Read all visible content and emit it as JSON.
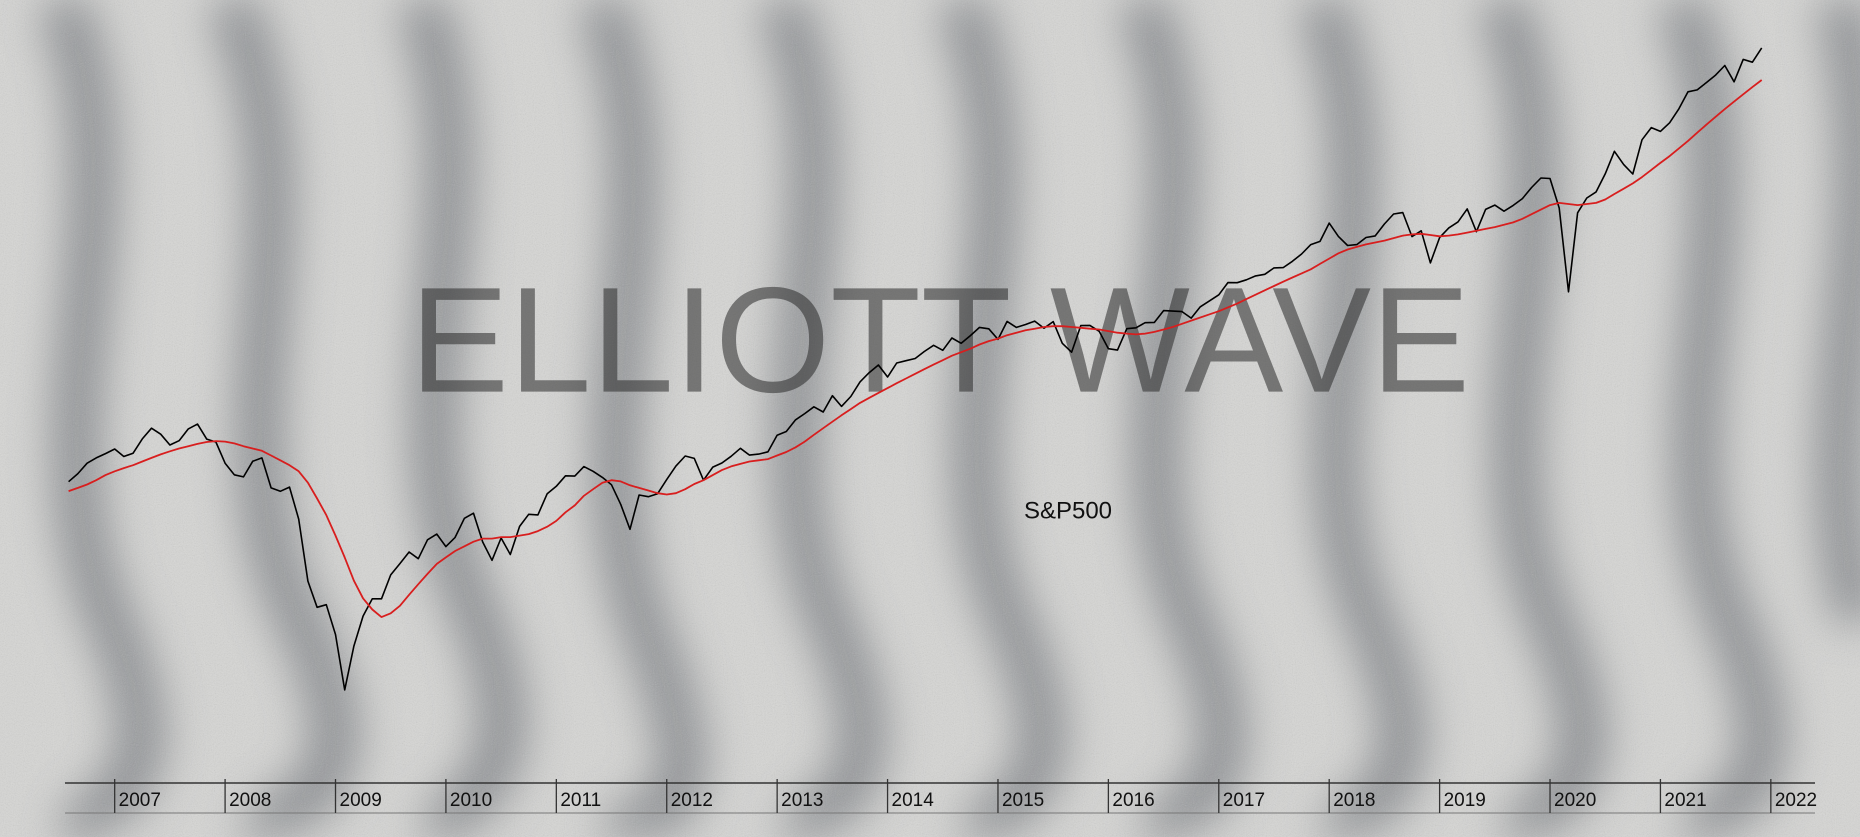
{
  "chart_data": {
    "type": "line",
    "watermark": "ELLIOTT WAVE",
    "log_scale": true,
    "xlim": [
      2006.55,
      2022.4
    ],
    "ylim": [
      530,
      5500
    ],
    "xticks": [
      2007,
      2008,
      2009,
      2010,
      2011,
      2012,
      2013,
      2014,
      2015,
      2016,
      2017,
      2018,
      2019,
      2020,
      2021,
      2022
    ],
    "x": [
      2006.583,
      2006.667,
      2006.75,
      2006.833,
      2006.917,
      2007,
      2007.083,
      2007.167,
      2007.25,
      2007.333,
      2007.417,
      2007.5,
      2007.583,
      2007.667,
      2007.75,
      2007.833,
      2007.917,
      2008,
      2008.083,
      2008.167,
      2008.25,
      2008.333,
      2008.417,
      2008.5,
      2008.583,
      2008.667,
      2008.75,
      2008.833,
      2008.917,
      2009,
      2009.083,
      2009.167,
      2009.25,
      2009.333,
      2009.417,
      2009.5,
      2009.583,
      2009.667,
      2009.75,
      2009.833,
      2009.917,
      2010,
      2010.083,
      2010.167,
      2010.25,
      2010.333,
      2010.417,
      2010.5,
      2010.583,
      2010.667,
      2010.75,
      2010.833,
      2010.917,
      2011,
      2011.083,
      2011.167,
      2011.25,
      2011.333,
      2011.417,
      2011.5,
      2011.583,
      2011.667,
      2011.75,
      2011.833,
      2011.917,
      2012,
      2012.083,
      2012.167,
      2012.25,
      2012.333,
      2012.417,
      2012.5,
      2012.583,
      2012.667,
      2012.75,
      2012.833,
      2012.917,
      2013,
      2013.083,
      2013.167,
      2013.25,
      2013.333,
      2013.417,
      2013.5,
      2013.583,
      2013.667,
      2013.75,
      2013.833,
      2013.917,
      2014,
      2014.083,
      2014.167,
      2014.25,
      2014.333,
      2014.417,
      2014.5,
      2014.583,
      2014.667,
      2014.75,
      2014.833,
      2014.917,
      2015,
      2015.083,
      2015.167,
      2015.25,
      2015.333,
      2015.417,
      2015.5,
      2015.583,
      2015.667,
      2015.75,
      2015.833,
      2015.917,
      2016,
      2016.083,
      2016.167,
      2016.25,
      2016.333,
      2016.417,
      2016.5,
      2016.583,
      2016.667,
      2016.75,
      2016.833,
      2016.917,
      2017,
      2017.083,
      2017.167,
      2017.25,
      2017.333,
      2017.417,
      2017.5,
      2017.583,
      2017.667,
      2017.75,
      2017.833,
      2017.917,
      2018,
      2018.083,
      2018.167,
      2018.25,
      2018.333,
      2018.417,
      2018.5,
      2018.583,
      2018.667,
      2018.75,
      2018.833,
      2018.917,
      2019,
      2019.083,
      2019.167,
      2019.25,
      2019.333,
      2019.417,
      2019.5,
      2019.583,
      2019.667,
      2019.75,
      2019.833,
      2019.917,
      2020,
      2020.083,
      2020.167,
      2020.25,
      2020.333,
      2020.417,
      2020.5,
      2020.583,
      2020.667,
      2020.75,
      2020.833,
      2020.917,
      2021,
      2021.083,
      2021.167,
      2021.25,
      2021.333,
      2021.417,
      2021.5,
      2021.583,
      2021.667,
      2021.75,
      2021.833,
      2021.917
    ],
    "series": [
      {
        "name": "S&P500",
        "color": "#000000",
        "values": [
          1304,
          1336,
          1378,
          1400,
          1418,
          1438,
          1406,
          1420,
          1482,
          1530,
          1503,
          1455,
          1474,
          1527,
          1549,
          1481,
          1468,
          1378,
          1331,
          1323,
          1386,
          1400,
          1280,
          1267,
          1283,
          1166,
          969,
          896,
          903,
          826,
          700,
          798,
          873,
          919,
          919,
          987,
          1021,
          1057,
          1036,
          1096,
          1115,
          1074,
          1104,
          1169,
          1187,
          1089,
          1031,
          1102,
          1049,
          1141,
          1183,
          1181,
          1258,
          1286,
          1327,
          1326,
          1364,
          1345,
          1321,
          1292,
          1219,
          1131,
          1253,
          1247,
          1258,
          1312,
          1366,
          1408,
          1398,
          1310,
          1362,
          1379,
          1407,
          1441,
          1412,
          1416,
          1426,
          1498,
          1515,
          1569,
          1598,
          1631,
          1606,
          1686,
          1633,
          1682,
          1757,
          1806,
          1848,
          1783,
          1859,
          1872,
          1884,
          1924,
          1960,
          1931,
          2003,
          1972,
          2018,
          2068,
          2059,
          1995,
          2105,
          2068,
          2086,
          2107,
          2063,
          2104,
          1972,
          1920,
          2079,
          2080,
          2044,
          1940,
          1932,
          2060,
          2065,
          2097,
          2099,
          2174,
          2171,
          2168,
          2126,
          2199,
          2239,
          2279,
          2364,
          2363,
          2384,
          2412,
          2423,
          2470,
          2472,
          2519,
          2575,
          2648,
          2674,
          2824,
          2714,
          2641,
          2648,
          2705,
          2718,
          2816,
          2902,
          2914,
          2712,
          2760,
          2507,
          2704,
          2784,
          2834,
          2946,
          2752,
          2942,
          2980,
          2926,
          2977,
          3038,
          3141,
          3231,
          3226,
          2954,
          2300,
          2912,
          3044,
          3100,
          3271,
          3500,
          3363,
          3270,
          3622,
          3756,
          3714,
          3811,
          3973,
          4181,
          4204,
          4298,
          4395,
          4523,
          4308,
          4605,
          4567,
          4766
        ]
      },
      {
        "color": "#d81e1e",
        "values": [
          1268,
          1280,
          1293,
          1310,
          1330,
          1345,
          1358,
          1370,
          1385,
          1400,
          1415,
          1428,
          1440,
          1450,
          1460,
          1468,
          1472,
          1470,
          1462,
          1450,
          1440,
          1430,
          1410,
          1390,
          1370,
          1345,
          1300,
          1240,
          1180,
          1110,
          1040,
          970,
          920,
          890,
          870,
          880,
          900,
          930,
          960,
          990,
          1020,
          1040,
          1060,
          1075,
          1090,
          1100,
          1100,
          1105,
          1105,
          1110,
          1115,
          1125,
          1140,
          1160,
          1190,
          1215,
          1250,
          1275,
          1300,
          1310,
          1305,
          1290,
          1280,
          1270,
          1260,
          1255,
          1260,
          1275,
          1295,
          1310,
          1330,
          1350,
          1365,
          1375,
          1385,
          1390,
          1395,
          1410,
          1425,
          1445,
          1470,
          1500,
          1530,
          1560,
          1590,
          1620,
          1650,
          1675,
          1700,
          1725,
          1750,
          1775,
          1800,
          1825,
          1850,
          1875,
          1900,
          1920,
          1940,
          1965,
          1985,
          2000,
          2020,
          2035,
          2050,
          2060,
          2070,
          2075,
          2075,
          2070,
          2065,
          2060,
          2055,
          2045,
          2035,
          2030,
          2025,
          2030,
          2040,
          2055,
          2070,
          2090,
          2110,
          2130,
          2150,
          2170,
          2195,
          2220,
          2250,
          2280,
          2310,
          2340,
          2370,
          2400,
          2430,
          2460,
          2500,
          2540,
          2580,
          2610,
          2630,
          2650,
          2665,
          2680,
          2700,
          2720,
          2730,
          2735,
          2725,
          2715,
          2720,
          2730,
          2745,
          2760,
          2775,
          2790,
          2810,
          2830,
          2860,
          2900,
          2940,
          2980,
          3000,
          2990,
          2980,
          2990,
          3000,
          3030,
          3080,
          3130,
          3180,
          3240,
          3310,
          3380,
          3450,
          3530,
          3610,
          3700,
          3790,
          3880,
          3970,
          4060,
          4150,
          4240,
          4330
        ]
      }
    ]
  }
}
